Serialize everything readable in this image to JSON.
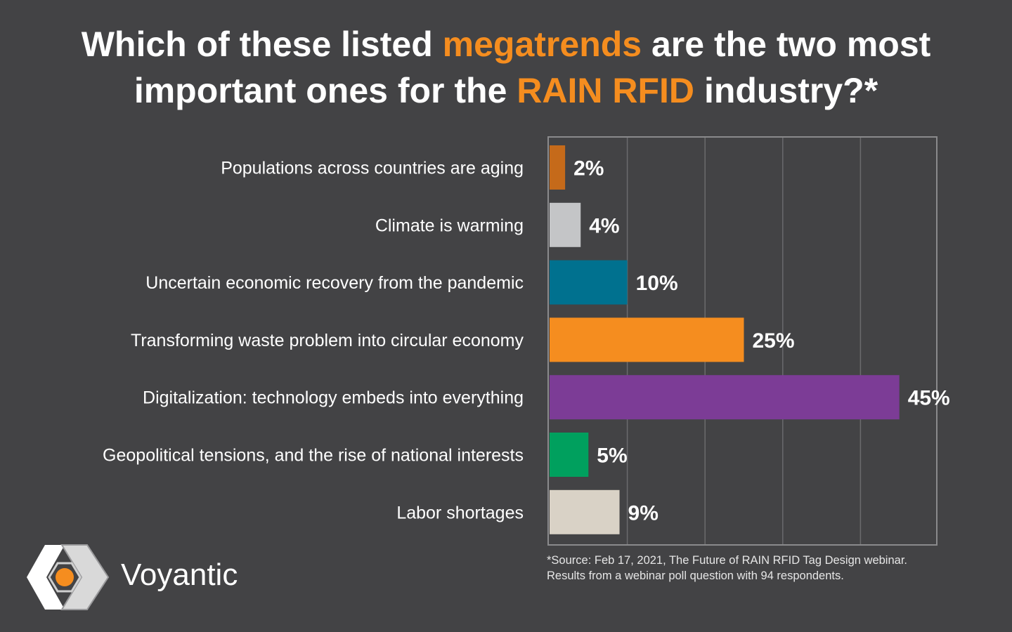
{
  "title": {
    "segments": [
      {
        "text": "Which of these listed ",
        "highlight": false
      },
      {
        "text": "megatrends",
        "highlight": true
      },
      {
        "text": " are the two most important ones for the ",
        "highlight": false
      },
      {
        "text": "RAIN RFID",
        "highlight": true
      },
      {
        "text": " industry?*",
        "highlight": false
      }
    ]
  },
  "chart_data": {
    "type": "bar",
    "orientation": "horizontal",
    "categories": [
      "Populations across countries are aging",
      "Climate is warming",
      "Uncertain economic recovery from the pandemic",
      "Transforming waste problem into circular economy",
      "Digitalization: technology embeds into everything",
      "Geopolitical tensions, and the rise of national interests",
      "Labor shortages"
    ],
    "values": [
      2,
      4,
      10,
      25,
      45,
      5,
      9
    ],
    "value_labels": [
      "2%",
      "4%",
      "10%",
      "25%",
      "45%",
      "5%",
      "9%"
    ],
    "colors": [
      "#c56a1a",
      "#c4c5c7",
      "#00718f",
      "#f58d1f",
      "#7c3c96",
      "#00a05e",
      "#d9d2c6"
    ],
    "unit": "%",
    "xlim": [
      0,
      50
    ],
    "grid": true,
    "legend": "none"
  },
  "footnote": {
    "line1": "*Source: Feb 17, 2021, The Future of RAIN RFID Tag Design webinar.",
    "line2": "Results from a webinar poll question with 94 respondents."
  },
  "brand": {
    "name": "Voyantic",
    "logo_icon": "voyantic-logo-icon"
  },
  "colors": {
    "background": "#434345",
    "accent": "#f58d1f",
    "grid": "#6b6b6d",
    "frame": "#8a8a8c"
  }
}
